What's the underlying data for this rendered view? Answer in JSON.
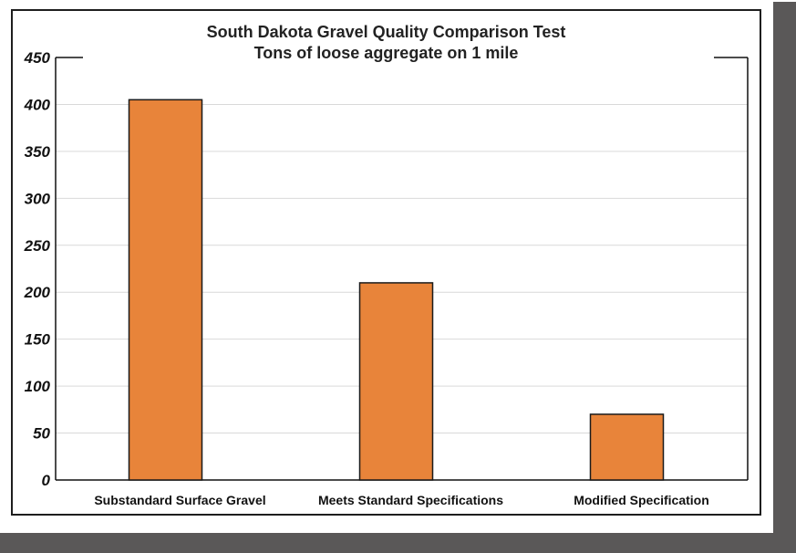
{
  "colors": {
    "bar_fill": "#E8843A",
    "bar_stroke": "#1a1a1a",
    "grid": "#d9d9d9",
    "frame_shadow": "#5a5858"
  },
  "chart_data": {
    "type": "bar",
    "title": "South Dakota Gravel Quality Comparison Test",
    "subtitle": "Tons of loose aggregate on 1 mile",
    "xlabel": "",
    "ylabel": "",
    "categories": [
      "Substandard Surface Gravel",
      "Meets Standard Specifications",
      "Modified Specification"
    ],
    "values": [
      405,
      210,
      70
    ],
    "ylim": [
      0,
      450
    ],
    "yticks": [
      0,
      50,
      100,
      150,
      200,
      250,
      300,
      350,
      400,
      450
    ],
    "grid": true,
    "legend": "none"
  }
}
